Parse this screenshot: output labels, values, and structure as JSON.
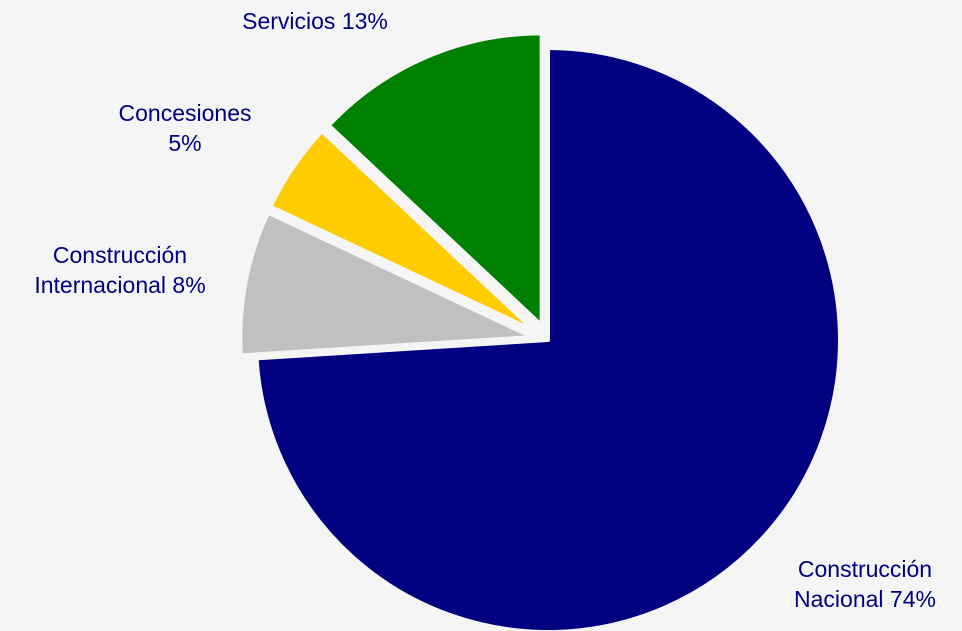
{
  "chart_data": {
    "type": "pie",
    "title": "",
    "categories": [
      "Construcción Nacional",
      "Construcción Internacional",
      "Concesiones",
      "Servicios"
    ],
    "values": [
      74,
      8,
      5,
      13
    ],
    "unit": "%",
    "colors": [
      "#000080",
      "#c0c0c0",
      "#ffcc00",
      "#008000"
    ],
    "labels": [
      [
        "Construcción",
        "Nacional 74%"
      ],
      [
        "Construcción",
        "Internacional 8%"
      ],
      [
        "Concesiones",
        "5%"
      ],
      [
        "Servicios 13%"
      ]
    ],
    "exploded": [
      false,
      true,
      true,
      true
    ],
    "label_color": "#000080",
    "background": "#f5f5f5"
  }
}
